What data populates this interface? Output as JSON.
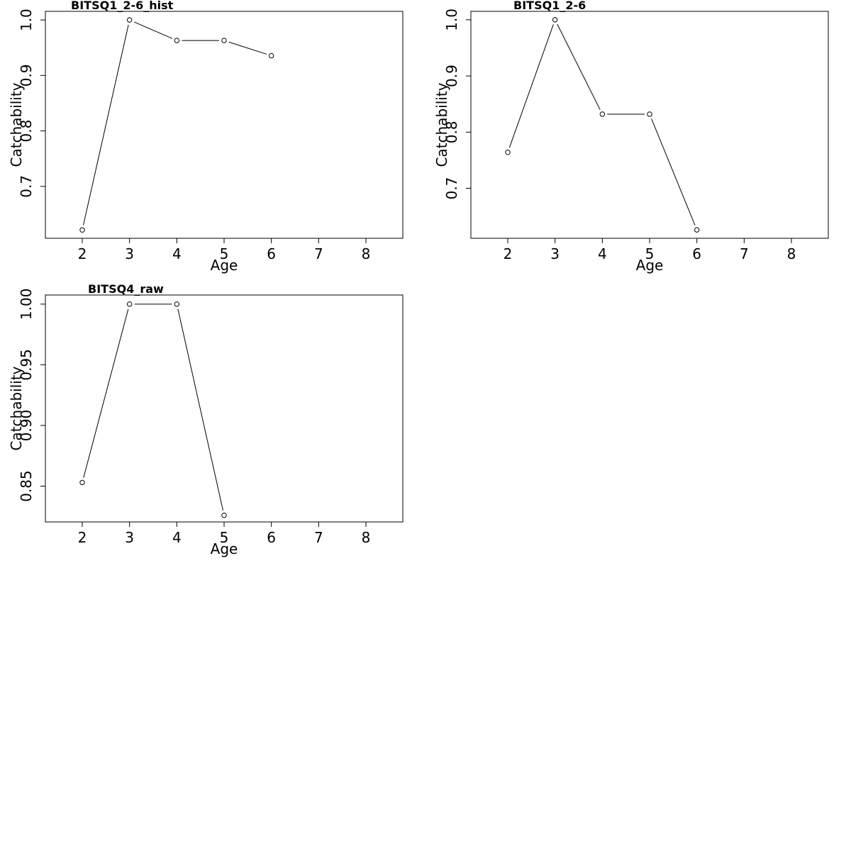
{
  "chart_data": [
    {
      "type": "line",
      "title": "BITSQ1_2-6_hist",
      "xlabel": "Age",
      "ylabel": "Catchability",
      "x_ticks": [
        2,
        3,
        4,
        5,
        6,
        7,
        8
      ],
      "y_ticks": [
        "0.7",
        "0.8",
        "0.9",
        "1.0"
      ],
      "xlim": [
        1.22,
        8.78
      ],
      "ylim": [
        0.6065,
        1.0155
      ],
      "series": [
        {
          "x": [
            2,
            3,
            4,
            5,
            6
          ],
          "y": [
            0.6215,
            1.0,
            0.963,
            0.963,
            0.9355
          ]
        }
      ]
    },
    {
      "type": "line",
      "title": "BITSQ1_2-6",
      "xlabel": "Age",
      "ylabel": "Catchability",
      "x_ticks": [
        2,
        3,
        4,
        5,
        6,
        7,
        8
      ],
      "y_ticks": [
        "0.7",
        "0.8",
        "0.9",
        "1.0"
      ],
      "xlim": [
        1.22,
        8.78
      ],
      "ylim": [
        0.611,
        1.015
      ],
      "series": [
        {
          "x": [
            2,
            3,
            4,
            5,
            6
          ],
          "y": [
            0.764,
            1.0,
            0.832,
            0.832,
            0.626
          ]
        }
      ]
    },
    {
      "type": "line",
      "title": "BITSQ4_raw",
      "xlabel": "Age",
      "ylabel": "Catchability",
      "x_ticks": [
        2,
        3,
        4,
        5,
        6,
        7,
        8
      ],
      "y_ticks": [
        "0.85",
        "0.90",
        "0.95",
        "1.00"
      ],
      "xlim": [
        1.22,
        8.78
      ],
      "ylim": [
        0.8205,
        1.0075
      ],
      "series": [
        {
          "x": [
            2,
            3,
            4,
            5
          ],
          "y": [
            0.853,
            1.0,
            1.0,
            0.826
          ]
        }
      ]
    }
  ]
}
